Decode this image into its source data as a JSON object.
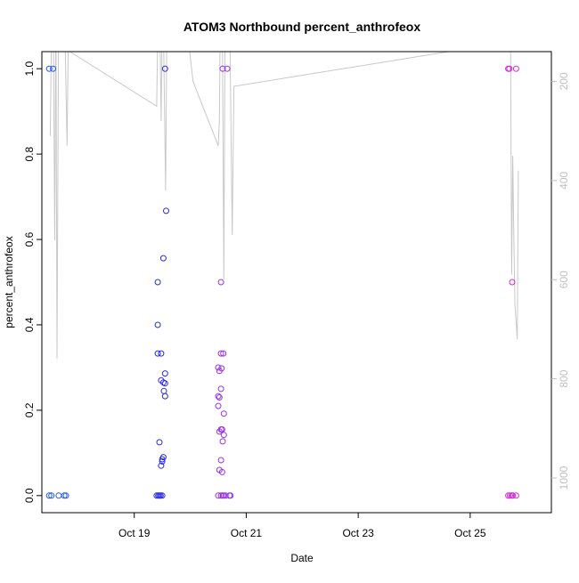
{
  "chart_data": {
    "type": "scatter",
    "title": "ATOM3 Northbound percent_anthrofeox",
    "xlabel": "Date",
    "ylabel": "percent_anthrofeox",
    "xlim": [
      17.35,
      26.45
    ],
    "ylim": [
      -0.04,
      1.04
    ],
    "x_tick_values": [
      19,
      21,
      23,
      25
    ],
    "x_tick_labels": [
      "Oct 19",
      "Oct 21",
      "Oct 23",
      "Oct 25"
    ],
    "y_ticks": [
      0.0,
      0.2,
      0.4,
      0.6,
      0.8,
      1.0
    ],
    "y_tick_labels": [
      "0.0",
      "0.2",
      "0.4",
      "0.6",
      "0.8",
      "1.0"
    ],
    "right_axis": {
      "ticks": [
        200,
        400,
        600,
        800,
        1000
      ],
      "tick_labels": [
        "200",
        "400",
        "600",
        "800",
        "1000"
      ],
      "top_value": 140,
      "bottom_value": 1070,
      "color": "#c0c0c0"
    },
    "grid": false,
    "legend": "none",
    "series": [
      {
        "color": "#2255ee",
        "points": [
          [
            17.48,
            1.0
          ],
          [
            17.55,
            1.0
          ],
          [
            17.48,
            0.0
          ],
          [
            17.52,
            0.0
          ],
          [
            17.65,
            0.0
          ],
          [
            17.75,
            0.0
          ],
          [
            17.78,
            0.0
          ]
        ]
      },
      {
        "color": "#2a2ae6",
        "points": [
          [
            19.55,
            1.0
          ],
          [
            19.57,
            0.667
          ],
          [
            19.52,
            0.556
          ],
          [
            19.42,
            0.5
          ],
          [
            19.42,
            0.4
          ],
          [
            19.42,
            0.333
          ],
          [
            19.48,
            0.333
          ],
          [
            19.55,
            0.286
          ],
          [
            19.48,
            0.27
          ],
          [
            19.52,
            0.265
          ],
          [
            19.55,
            0.263
          ],
          [
            19.53,
            0.245
          ],
          [
            19.55,
            0.233
          ],
          [
            19.45,
            0.125
          ],
          [
            19.52,
            0.09
          ],
          [
            19.5,
            0.085
          ],
          [
            19.5,
            0.08
          ],
          [
            19.48,
            0.07
          ],
          [
            19.4,
            0.0
          ],
          [
            19.43,
            0.0
          ],
          [
            19.45,
            0.0
          ],
          [
            19.47,
            0.0
          ],
          [
            19.5,
            0.0
          ]
        ]
      },
      {
        "color": "#9933e6",
        "points": [
          [
            20.58,
            1.0
          ],
          [
            20.66,
            1.0
          ],
          [
            20.55,
            0.5
          ],
          [
            20.55,
            0.333
          ],
          [
            20.59,
            0.333
          ],
          [
            20.5,
            0.3
          ],
          [
            20.56,
            0.298
          ],
          [
            20.52,
            0.292
          ],
          [
            20.5,
            0.233
          ],
          [
            20.52,
            0.23
          ],
          [
            20.55,
            0.25
          ],
          [
            20.5,
            0.21
          ],
          [
            20.6,
            0.192
          ],
          [
            20.52,
            0.15
          ],
          [
            20.55,
            0.155
          ],
          [
            20.57,
            0.155
          ],
          [
            20.6,
            0.142
          ],
          [
            20.58,
            0.127
          ],
          [
            20.55,
            0.083
          ],
          [
            20.52,
            0.06
          ],
          [
            20.57,
            0.055
          ],
          [
            20.5,
            0.0
          ],
          [
            20.55,
            0.0
          ],
          [
            20.58,
            0.0
          ],
          [
            20.6,
            0.0
          ],
          [
            20.63,
            0.0
          ],
          [
            20.7,
            0.0
          ],
          [
            20.72,
            0.0
          ]
        ]
      },
      {
        "color": "#dd22dd",
        "points": [
          [
            25.68,
            1.0
          ],
          [
            25.7,
            1.0
          ],
          [
            25.82,
            1.0
          ],
          [
            25.75,
            0.5
          ],
          [
            25.68,
            0.0
          ],
          [
            25.71,
            0.0
          ],
          [
            25.74,
            0.0
          ],
          [
            25.76,
            0.0
          ],
          [
            25.82,
            0.0
          ]
        ]
      }
    ],
    "altitude_line": {
      "color": "#c8c8c8",
      "segments": [
        [
          [
            17.5,
            310
          ],
          [
            17.53,
            30
          ],
          [
            17.55,
            25
          ],
          [
            17.58,
            520
          ],
          [
            17.6,
            25
          ],
          [
            17.62,
            760
          ],
          [
            17.65,
            30
          ],
          [
            17.75,
            25
          ],
          [
            17.8,
            330
          ],
          [
            17.82,
            140
          ],
          [
            17.85,
            140
          ],
          [
            19.4,
            250
          ],
          [
            19.42,
            100
          ],
          [
            19.46,
            100
          ],
          [
            19.48,
            280
          ],
          [
            19.5,
            80
          ],
          [
            19.52,
            80
          ],
          [
            19.56,
            420
          ],
          [
            19.58,
            120
          ]
        ],
        [
          [
            19.95,
            100
          ],
          [
            20.05,
            200
          ],
          [
            20.5,
            330
          ],
          [
            20.52,
            280
          ],
          [
            20.54,
            20
          ],
          [
            20.57,
            20
          ],
          [
            20.6,
            600
          ],
          [
            20.62,
            130
          ],
          [
            20.64,
            10
          ],
          [
            20.7,
            30
          ],
          [
            20.75,
            510
          ],
          [
            20.78,
            210
          ],
          [
            25.7,
            120
          ],
          [
            25.72,
            90
          ],
          [
            25.74,
            590
          ],
          [
            25.76,
            350
          ],
          [
            25.78,
            520
          ],
          [
            25.8,
            650
          ],
          [
            25.84,
            720
          ],
          [
            25.86,
            380
          ]
        ]
      ]
    }
  }
}
